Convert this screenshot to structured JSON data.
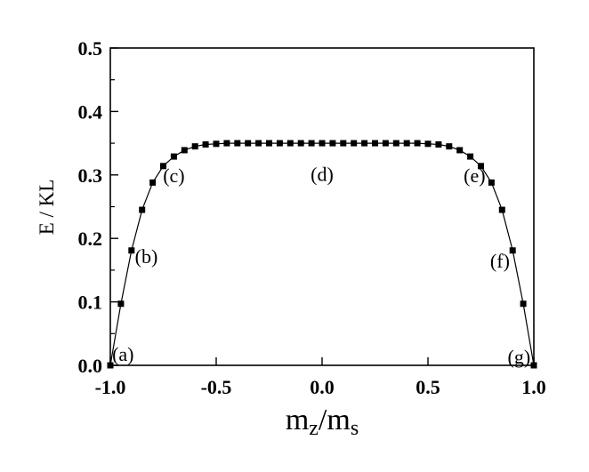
{
  "chart_data": {
    "type": "line",
    "xlabel": {
      "base1": "m",
      "sub1": "z",
      "sep": "/m",
      "sub2": "s"
    },
    "ylabel": "E / KL",
    "xlim": [
      -1.0,
      1.0
    ],
    "ylim": [
      0.0,
      0.5
    ],
    "xticks": [
      -1.0,
      -0.5,
      0.0,
      0.5,
      1.0
    ],
    "xtick_labels": [
      "-1.0",
      "-0.5",
      "0.0",
      "0.5",
      "1.0"
    ],
    "yticks": [
      0.0,
      0.1,
      0.2,
      0.3,
      0.4,
      0.5
    ],
    "ytick_labels": [
      "0.0",
      "0.1",
      "0.2",
      "0.3",
      "0.4",
      "0.5"
    ],
    "grid": false,
    "legend": "none",
    "line_color": "#000000",
    "marker": "square",
    "series": [
      {
        "x": [
          -1.0,
          -0.95,
          -0.9,
          -0.85,
          -0.8,
          -0.75,
          -0.7,
          -0.65,
          -0.6,
          -0.55,
          -0.5,
          -0.45,
          -0.4,
          -0.35,
          -0.3,
          -0.25,
          -0.2,
          -0.15,
          -0.1,
          -0.05,
          0.0,
          0.05,
          0.1,
          0.15,
          0.2,
          0.25,
          0.3,
          0.35,
          0.4,
          0.45,
          0.5,
          0.55,
          0.6,
          0.65,
          0.7,
          0.75,
          0.8,
          0.85,
          0.9,
          0.95,
          1.0
        ],
        "y": [
          0.0,
          0.097,
          0.181,
          0.245,
          0.288,
          0.314,
          0.329,
          0.339,
          0.345,
          0.348,
          0.349,
          0.35,
          0.35,
          0.35,
          0.35,
          0.35,
          0.35,
          0.35,
          0.35,
          0.35,
          0.35,
          0.35,
          0.35,
          0.35,
          0.35,
          0.35,
          0.35,
          0.35,
          0.35,
          0.35,
          0.349,
          0.348,
          0.345,
          0.339,
          0.329,
          0.314,
          0.288,
          0.245,
          0.181,
          0.097,
          0.0
        ]
      }
    ],
    "annotations": [
      {
        "text": "(a)",
        "x": -0.94,
        "y": 0.018
      },
      {
        "text": "(b)",
        "x": -0.83,
        "y": 0.172
      },
      {
        "text": "(c)",
        "x": -0.7,
        "y": 0.3
      },
      {
        "text": "(d)",
        "x": 0.0,
        "y": 0.302
      },
      {
        "text": "(e)",
        "x": 0.72,
        "y": 0.3
      },
      {
        "text": "(f)",
        "x": 0.84,
        "y": 0.165
      },
      {
        "text": "(g)",
        "x": 0.93,
        "y": 0.014
      }
    ]
  }
}
